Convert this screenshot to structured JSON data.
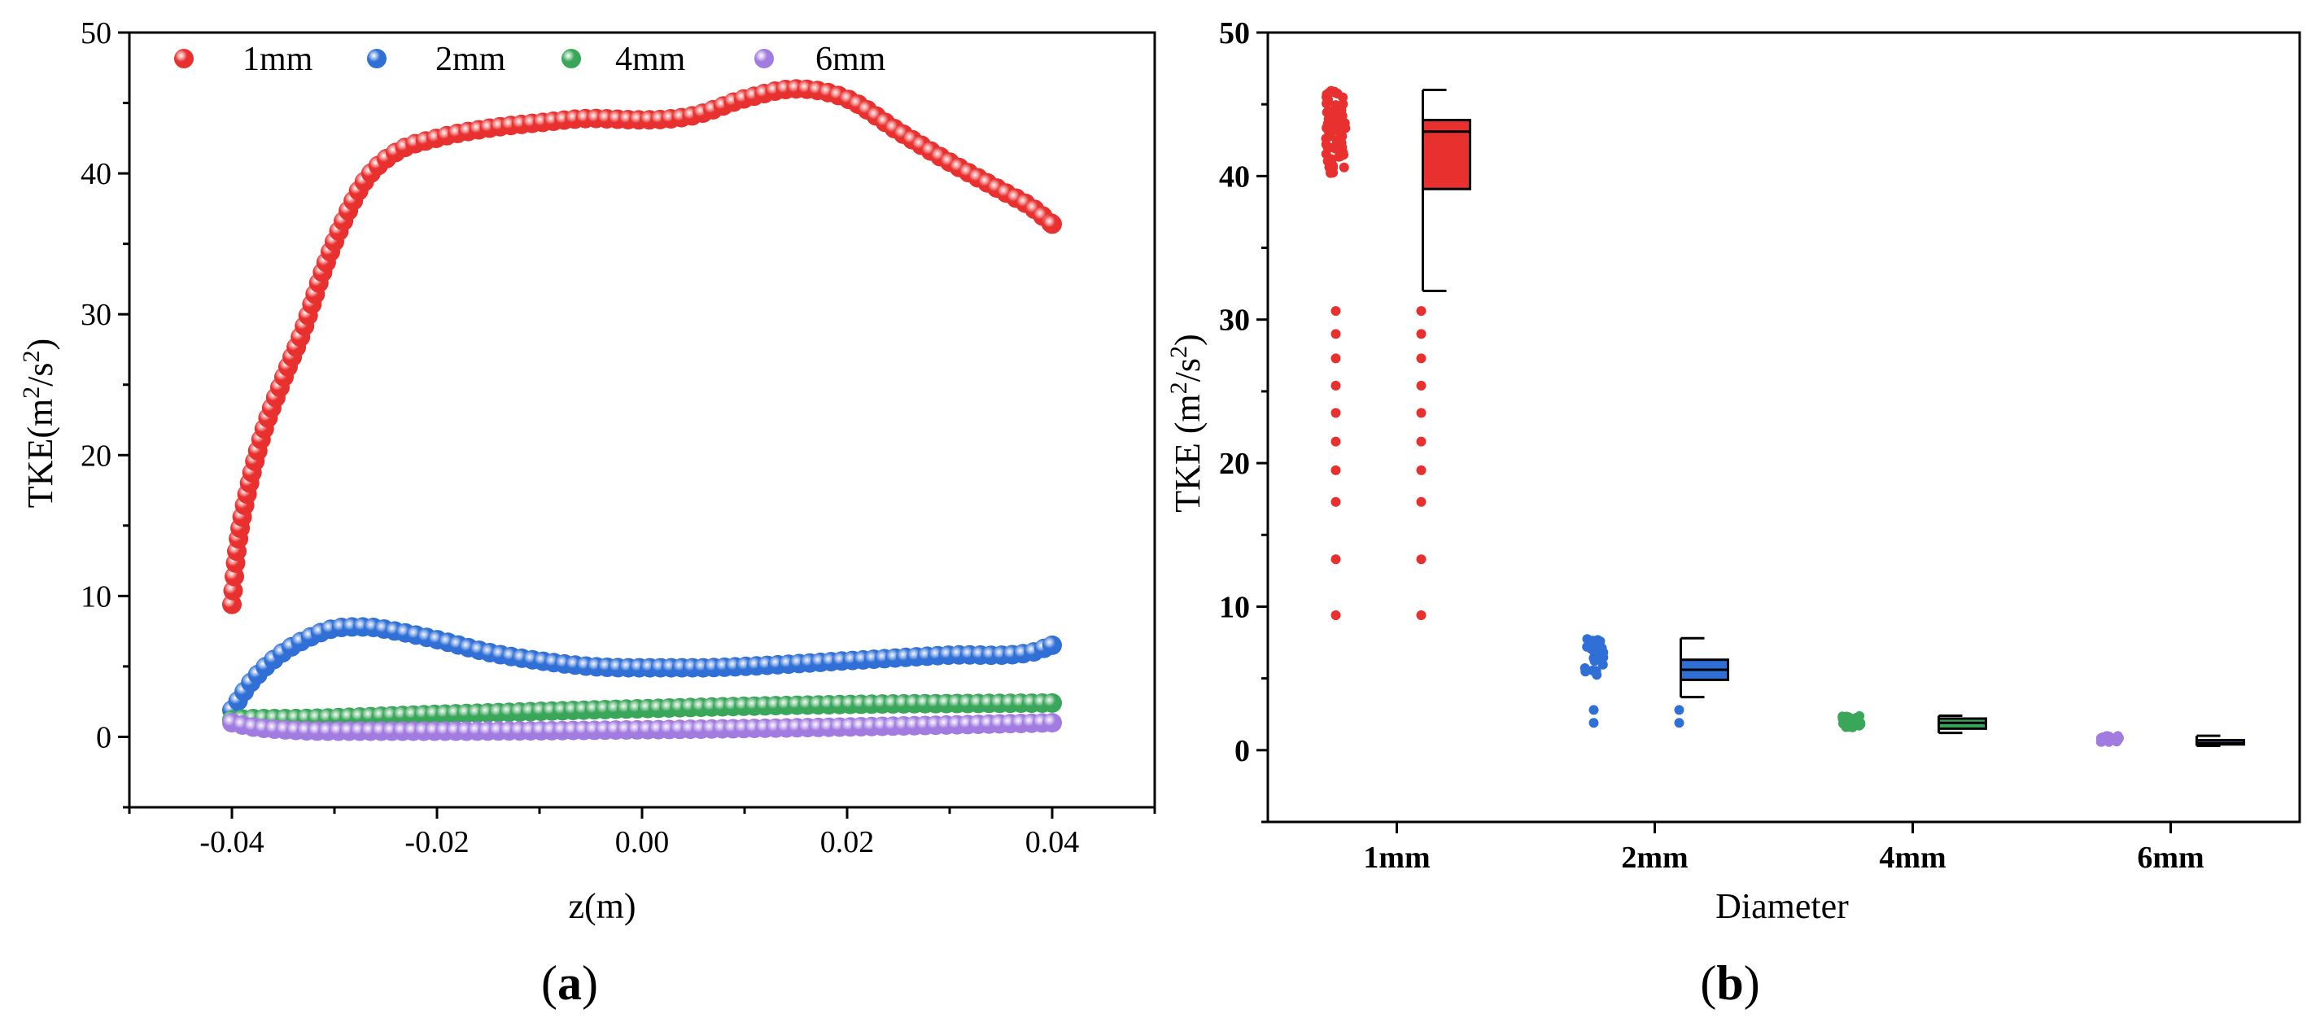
{
  "colors": {
    "1mm": "#e8302f",
    "2mm": "#2f6fd6",
    "4mm": "#3aa65a",
    "6mm": "#a27be0"
  },
  "chart_data": [
    {
      "type": "scatter",
      "panel": "a",
      "panel_label": "(a)",
      "xlabel": "z(m)",
      "ylabel": "TKE(m2/s2)",
      "ylabel_parts": [
        "TKE(m",
        "2",
        "/s",
        "2",
        ")"
      ],
      "xlim": [
        -0.05,
        0.05
      ],
      "ylim": [
        -5,
        50
      ],
      "xticks": [
        -0.04,
        -0.02,
        0.0,
        0.02,
        0.04
      ],
      "xtick_labels": [
        "-0.04",
        "-0.02",
        "0.00",
        "0.02",
        "0.04"
      ],
      "yticks": [
        0,
        10,
        20,
        30,
        40,
        50
      ],
      "ytick_labels": [
        "0",
        "10",
        "20",
        "30",
        "40",
        "50"
      ],
      "legend": [
        "1mm",
        "2mm",
        "4mm",
        "6mm"
      ],
      "legend_position": "top-left",
      "series_knots": [
        {
          "name": "1mm",
          "x": [
            -0.04,
            -0.0395,
            -0.0385,
            -0.037,
            -0.035,
            -0.033,
            -0.031,
            -0.029,
            -0.027,
            -0.024,
            -0.02,
            -0.015,
            -0.01,
            -0.005,
            0.0,
            0.005,
            0.01,
            0.015,
            0.02,
            0.025,
            0.03,
            0.035,
            0.038,
            0.04
          ],
          "y": [
            9.4,
            13.3,
            17.3,
            21.5,
            25.4,
            29.0,
            33.3,
            36.8,
            39.5,
            41.5,
            42.5,
            43.2,
            43.6,
            43.9,
            43.8,
            44.1,
            45.3,
            46.0,
            45.3,
            43.0,
            40.8,
            38.8,
            37.6,
            36.4
          ]
        },
        {
          "name": "2mm",
          "x": [
            -0.04,
            -0.038,
            -0.035,
            -0.032,
            -0.03,
            -0.027,
            -0.024,
            -0.02,
            -0.015,
            -0.01,
            -0.005,
            0.0,
            0.005,
            0.01,
            0.02,
            0.03,
            0.038,
            0.04
          ],
          "y": [
            1.9,
            4.0,
            6.0,
            7.2,
            7.7,
            7.8,
            7.5,
            6.9,
            6.0,
            5.4,
            5.0,
            4.9,
            4.9,
            5.0,
            5.4,
            5.8,
            6.0,
            6.5
          ]
        },
        {
          "name": "4mm",
          "x": [
            -0.04,
            -0.038,
            -0.035,
            -0.02,
            0.0,
            0.02,
            0.04
          ],
          "y": [
            1.2,
            1.3,
            1.3,
            1.6,
            2.0,
            2.3,
            2.4
          ]
        },
        {
          "name": "6mm",
          "x": [
            -0.04,
            -0.038,
            -0.035,
            -0.03,
            -0.02,
            0.0,
            0.02,
            0.04
          ],
          "y": [
            1.0,
            0.7,
            0.5,
            0.4,
            0.4,
            0.5,
            0.7,
            1.0
          ]
        }
      ]
    },
    {
      "type": "box",
      "panel": "b",
      "panel_label": "(b)",
      "xlabel": "Diameter",
      "ylabel": "TKE (m2/s2)",
      "ylabel_parts": [
        "TKE (m",
        "2",
        "/s",
        "2",
        ")"
      ],
      "ylim": [
        -5,
        50
      ],
      "yticks": [
        0,
        10,
        20,
        30,
        40,
        50
      ],
      "ytick_labels": [
        "0",
        "10",
        "20",
        "30",
        "40",
        "50"
      ],
      "categories": [
        "1mm",
        "2mm",
        "4mm",
        "6mm"
      ],
      "boxes": [
        {
          "name": "1mm",
          "whisker_low": 32.0,
          "q1": 39.1,
          "median": 43.1,
          "q3": 43.9,
          "whisker_high": 46.0,
          "outliers": [
            9.4,
            13.3,
            17.3,
            19.5,
            21.5,
            23.5,
            25.4,
            27.3,
            29.0,
            30.6
          ]
        },
        {
          "name": "2mm",
          "whisker_low": 3.7,
          "q1": 4.9,
          "median": 5.6,
          "q3": 6.3,
          "whisker_high": 7.8,
          "outliers": [
            1.9,
            2.8
          ]
        },
        {
          "name": "4mm",
          "whisker_low": 1.2,
          "q1": 1.5,
          "median": 1.9,
          "q3": 2.2,
          "whisker_high": 2.4,
          "outliers": []
        },
        {
          "name": "6mm",
          "whisker_low": 0.3,
          "q1": 0.4,
          "median": 0.5,
          "q3": 0.7,
          "whisker_high": 1.0,
          "outliers": []
        }
      ]
    }
  ]
}
